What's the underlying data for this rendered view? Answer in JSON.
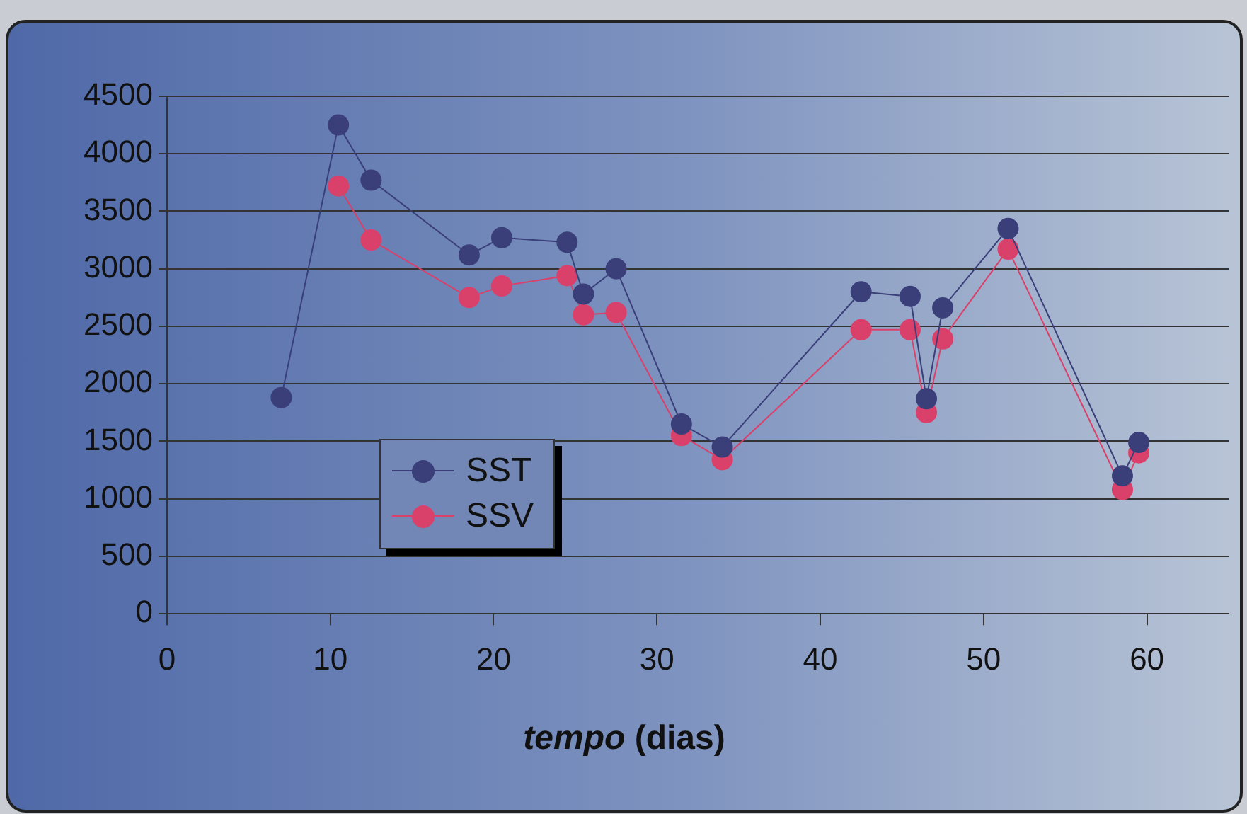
{
  "chart_data": {
    "type": "line",
    "xlabel": "tempo (dias)",
    "x": [
      7,
      10.5,
      12.5,
      18.5,
      20.5,
      24.5,
      25.5,
      27.5,
      31.5,
      34,
      42.5,
      45.5,
      46.5,
      47.5,
      51.5,
      58.5,
      59.5
    ],
    "series": [
      {
        "name": "SST",
        "color": "#3a3f7a",
        "values": [
          1880,
          4250,
          3770,
          3120,
          3270,
          3230,
          2780,
          3000,
          1650,
          1450,
          2800,
          2760,
          1870,
          2660,
          3350,
          1200,
          1490
        ]
      },
      {
        "name": "SSV",
        "color": "#d9406a",
        "values": [
          null,
          3720,
          3250,
          2750,
          2850,
          2940,
          2600,
          2620,
          1550,
          1340,
          2470,
          2470,
          1750,
          2390,
          3170,
          1080,
          1400
        ]
      }
    ],
    "xlim": [
      0,
      65
    ],
    "xticks": [
      0,
      10,
      20,
      30,
      40,
      50,
      60
    ],
    "ylim": [
      0,
      4500
    ],
    "yticks": [
      0,
      500,
      1000,
      1500,
      2000,
      2500,
      3000,
      3500,
      4000,
      4500
    ],
    "grid": "y",
    "legend": "bottom left",
    "marker": "circle",
    "line_style": "solid"
  }
}
